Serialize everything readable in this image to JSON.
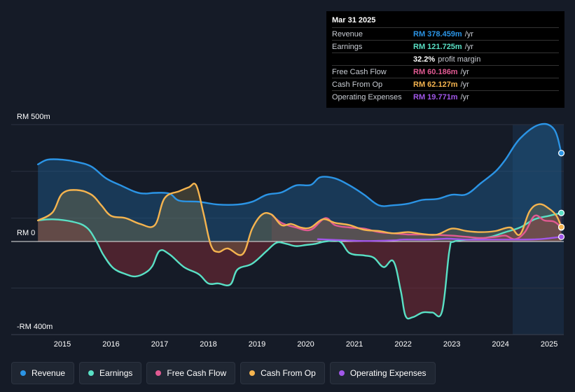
{
  "chart_data": {
    "type": "area",
    "currency": "RM",
    "y_axis": {
      "top_label": "RM 500m",
      "zero_label": "RM 0",
      "bottom_label": "-RM 400m",
      "ylim": [
        -400,
        500
      ]
    },
    "x_ticks": [
      "2015",
      "2016",
      "2017",
      "2018",
      "2019",
      "2020",
      "2021",
      "2022",
      "2023",
      "2024",
      "2025"
    ],
    "x_tick_values": [
      2015,
      2016,
      2017,
      2018,
      2019,
      2020,
      2021,
      2022,
      2023,
      2024,
      2025
    ],
    "xlim": [
      2013.95,
      2025.3
    ],
    "highlight_from": 2024.25,
    "series": [
      {
        "name": "Revenue",
        "color": "#2b94e5",
        "points": [
          [
            2014.5,
            330
          ],
          [
            2014.7,
            350
          ],
          [
            2015.0,
            350
          ],
          [
            2015.3,
            340
          ],
          [
            2015.6,
            320
          ],
          [
            2015.9,
            270
          ],
          [
            2016.2,
            240
          ],
          [
            2016.5,
            212
          ],
          [
            2016.7,
            205
          ],
          [
            2016.9,
            208
          ],
          [
            2017.2,
            205
          ],
          [
            2017.4,
            175
          ],
          [
            2017.8,
            170
          ],
          [
            2018.2,
            158
          ],
          [
            2018.6,
            158
          ],
          [
            2018.9,
            170
          ],
          [
            2019.2,
            200
          ],
          [
            2019.5,
            210
          ],
          [
            2019.8,
            240
          ],
          [
            2020.1,
            242
          ],
          [
            2020.3,
            275
          ],
          [
            2020.6,
            270
          ],
          [
            2020.9,
            240
          ],
          [
            2021.2,
            200
          ],
          [
            2021.5,
            155
          ],
          [
            2021.8,
            155
          ],
          [
            2022.1,
            162
          ],
          [
            2022.4,
            178
          ],
          [
            2022.7,
            182
          ],
          [
            2023.0,
            200
          ],
          [
            2023.3,
            202
          ],
          [
            2023.6,
            250
          ],
          [
            2023.9,
            300
          ],
          [
            2024.1,
            350
          ],
          [
            2024.4,
            440
          ],
          [
            2024.8,
            500
          ],
          [
            2025.1,
            480
          ],
          [
            2025.25,
            378
          ]
        ]
      },
      {
        "name": "Earnings",
        "color": "#59e0c5",
        "points": [
          [
            2014.5,
            90
          ],
          [
            2014.8,
            95
          ],
          [
            2015.2,
            85
          ],
          [
            2015.5,
            60
          ],
          [
            2015.7,
            0
          ],
          [
            2015.85,
            -60
          ],
          [
            2016.05,
            -115
          ],
          [
            2016.3,
            -140
          ],
          [
            2016.5,
            -150
          ],
          [
            2016.7,
            -135
          ],
          [
            2016.85,
            -105
          ],
          [
            2017.0,
            -40
          ],
          [
            2017.2,
            -55
          ],
          [
            2017.5,
            -110
          ],
          [
            2017.8,
            -140
          ],
          [
            2018.0,
            -180
          ],
          [
            2018.2,
            -180
          ],
          [
            2018.45,
            -185
          ],
          [
            2018.6,
            -120
          ],
          [
            2018.9,
            -95
          ],
          [
            2019.2,
            -40
          ],
          [
            2019.4,
            -5
          ],
          [
            2019.6,
            -10
          ],
          [
            2019.8,
            -20
          ],
          [
            2020.0,
            -15
          ],
          [
            2020.2,
            -10
          ],
          [
            2020.4,
            0
          ],
          [
            2020.7,
            0
          ],
          [
            2020.9,
            -50
          ],
          [
            2021.2,
            -60
          ],
          [
            2021.4,
            -70
          ],
          [
            2021.6,
            -110
          ],
          [
            2021.8,
            -85
          ],
          [
            2021.95,
            -210
          ],
          [
            2022.05,
            -320
          ],
          [
            2022.2,
            -325
          ],
          [
            2022.4,
            -305
          ],
          [
            2022.6,
            -305
          ],
          [
            2022.8,
            -300
          ],
          [
            2022.95,
            -40
          ],
          [
            2023.05,
            0
          ],
          [
            2023.5,
            10
          ],
          [
            2023.8,
            20
          ],
          [
            2024.1,
            40
          ],
          [
            2024.4,
            60
          ],
          [
            2024.7,
            95
          ],
          [
            2025.0,
            110
          ],
          [
            2025.25,
            122
          ]
        ]
      },
      {
        "name": "Free Cash Flow",
        "color": "#e15a92",
        "points": [
          [
            2019.3,
            115
          ],
          [
            2019.5,
            80
          ],
          [
            2019.8,
            60
          ],
          [
            2020.1,
            50
          ],
          [
            2020.4,
            100
          ],
          [
            2020.6,
            70
          ],
          [
            2020.9,
            60
          ],
          [
            2021.2,
            55
          ],
          [
            2021.5,
            40
          ],
          [
            2021.8,
            35
          ],
          [
            2022.1,
            30
          ],
          [
            2022.4,
            30
          ],
          [
            2022.7,
            28
          ],
          [
            2023.0,
            25
          ],
          [
            2023.3,
            20
          ],
          [
            2023.6,
            15
          ],
          [
            2023.9,
            20
          ],
          [
            2024.1,
            25
          ],
          [
            2024.3,
            10
          ],
          [
            2024.5,
            40
          ],
          [
            2024.7,
            110
          ],
          [
            2024.9,
            90
          ],
          [
            2025.1,
            85
          ],
          [
            2025.25,
            60
          ]
        ]
      },
      {
        "name": "Cash From Op",
        "color": "#f5b44f",
        "points": [
          [
            2014.5,
            90
          ],
          [
            2014.8,
            125
          ],
          [
            2015.0,
            205
          ],
          [
            2015.3,
            220
          ],
          [
            2015.6,
            200
          ],
          [
            2015.8,
            155
          ],
          [
            2016.0,
            110
          ],
          [
            2016.3,
            100
          ],
          [
            2016.6,
            75
          ],
          [
            2016.9,
            70
          ],
          [
            2017.1,
            185
          ],
          [
            2017.4,
            215
          ],
          [
            2017.6,
            232
          ],
          [
            2017.75,
            240
          ],
          [
            2017.9,
            120
          ],
          [
            2018.05,
            -15
          ],
          [
            2018.2,
            -45
          ],
          [
            2018.4,
            -30
          ],
          [
            2018.7,
            -55
          ],
          [
            2018.9,
            55
          ],
          [
            2019.1,
            115
          ],
          [
            2019.3,
            115
          ],
          [
            2019.5,
            70
          ],
          [
            2019.7,
            75
          ],
          [
            2019.9,
            60
          ],
          [
            2020.1,
            60
          ],
          [
            2020.35,
            95
          ],
          [
            2020.6,
            80
          ],
          [
            2020.9,
            70
          ],
          [
            2021.2,
            50
          ],
          [
            2021.5,
            45
          ],
          [
            2021.8,
            35
          ],
          [
            2022.1,
            40
          ],
          [
            2022.4,
            32
          ],
          [
            2022.7,
            30
          ],
          [
            2023.0,
            55
          ],
          [
            2023.3,
            45
          ],
          [
            2023.6,
            40
          ],
          [
            2023.9,
            45
          ],
          [
            2024.2,
            60
          ],
          [
            2024.4,
            30
          ],
          [
            2024.6,
            130
          ],
          [
            2024.8,
            160
          ],
          [
            2025.0,
            140
          ],
          [
            2025.15,
            110
          ],
          [
            2025.25,
            62
          ]
        ]
      },
      {
        "name": "Operating Expenses",
        "color": "#a157e9",
        "points": [
          [
            2020.25,
            10
          ],
          [
            2020.8,
            5
          ],
          [
            2021.2,
            2
          ],
          [
            2021.8,
            5
          ],
          [
            2022.0,
            8
          ],
          [
            2022.5,
            8
          ],
          [
            2022.9,
            12
          ],
          [
            2023.3,
            8
          ],
          [
            2023.8,
            8
          ],
          [
            2024.3,
            8
          ],
          [
            2024.8,
            10
          ],
          [
            2025.25,
            20
          ]
        ]
      }
    ]
  },
  "tooltip": {
    "date": "Mar 31 2025",
    "rows": [
      {
        "label": "Revenue",
        "value": "RM 378.459m",
        "unit": "/yr",
        "color": "#2b94e5"
      },
      {
        "label": "Earnings",
        "value": "RM 121.725m",
        "unit": "/yr",
        "color": "#59e0c5"
      },
      {
        "label": "",
        "value": "32.2%",
        "unit": "profit margin",
        "color": "#ffffff"
      },
      {
        "label": "Free Cash Flow",
        "value": "RM 60.186m",
        "unit": "/yr",
        "color": "#e15a92"
      },
      {
        "label": "Cash From Op",
        "value": "RM 62.127m",
        "unit": "/yr",
        "color": "#f5b44f"
      },
      {
        "label": "Operating Expenses",
        "value": "RM 19.771m",
        "unit": "/yr",
        "color": "#a157e9"
      }
    ]
  },
  "legend": [
    {
      "label": "Revenue",
      "color": "#2b94e5"
    },
    {
      "label": "Earnings",
      "color": "#59e0c5"
    },
    {
      "label": "Free Cash Flow",
      "color": "#e15a92"
    },
    {
      "label": "Cash From Op",
      "color": "#f5b44f"
    },
    {
      "label": "Operating Expenses",
      "color": "#a157e9"
    }
  ]
}
